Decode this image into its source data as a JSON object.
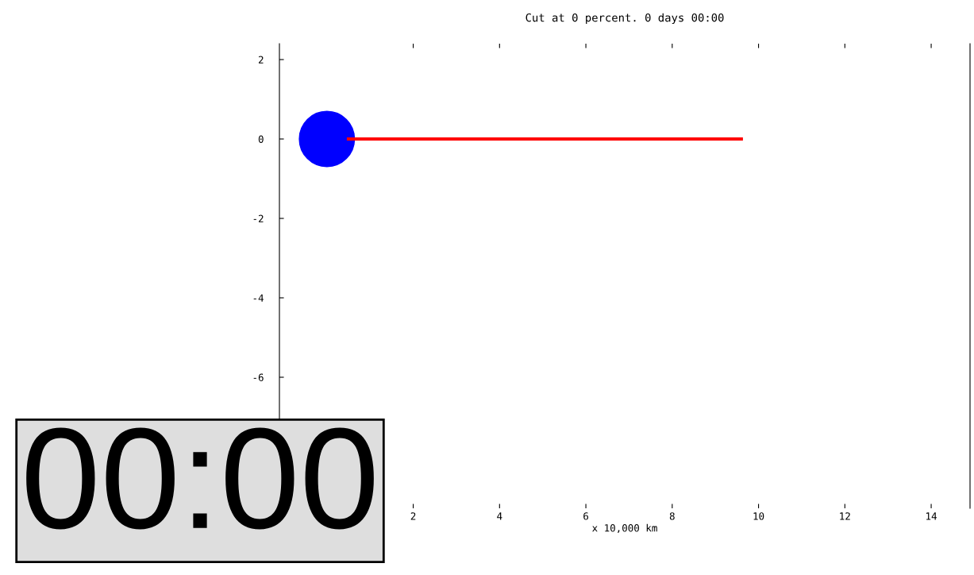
{
  "chart_data": {
    "type": "scatter",
    "title": "Cut at 0 percent. 0 days 00:00",
    "xlabel": "x 10,000 km",
    "series": [
      {
        "color": "#0000ff",
        "x": [
          0
        ],
        "values": [
          0
        ],
        "marker": "circle"
      },
      {
        "type": "line",
        "color": "#ff0000",
        "x": [
          0.5,
          9.6
        ],
        "values": [
          0,
          0
        ],
        "marker": "none",
        "line_style": "solid"
      }
    ],
    "annotations": [
      "00:00"
    ],
    "xlim": [
      -1.1,
      14.9
    ],
    "ylim": [
      -9.3,
      2.4
    ],
    "xticks": [
      2,
      4,
      6,
      8,
      10,
      12,
      14
    ],
    "yticks": [
      2,
      0,
      -2,
      -4,
      -6
    ],
    "grid": false,
    "legend": false
  }
}
